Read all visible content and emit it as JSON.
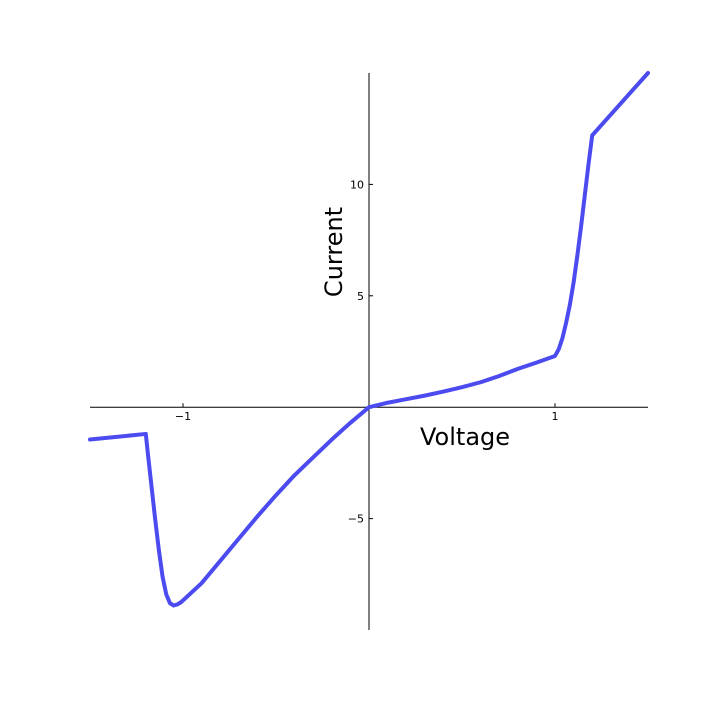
{
  "chart_data": {
    "type": "line",
    "title": "",
    "xlabel": "Voltage",
    "ylabel": "Current",
    "xlim": [
      -1.5,
      1.5
    ],
    "ylim": [
      -10,
      15
    ],
    "grid": false,
    "legend": "none",
    "line_color": "#4b4bf0",
    "x_ticks": [
      {
        "value": -1,
        "label": "−1"
      },
      {
        "value": 1,
        "label": "1"
      }
    ],
    "y_ticks": [
      {
        "value": -5,
        "label": "−5"
      },
      {
        "value": 5,
        "label": "5"
      },
      {
        "value": 10,
        "label": "10"
      }
    ],
    "series": [
      {
        "x": [
          -1.5,
          -1.2,
          -1.2,
          -1.19,
          -1.17,
          -1.15,
          -1.13,
          -1.11,
          -1.09,
          -1.07,
          -1.05,
          -1.03,
          -1.01,
          -0.9,
          -0.8,
          -0.7,
          -0.6,
          -0.5,
          -0.4,
          -0.3,
          -0.2,
          -0.1,
          0,
          0.1,
          0.2,
          0.3,
          0.4,
          0.5,
          0.6,
          0.7,
          0.8,
          0.9,
          1.0,
          1.02,
          1.04,
          1.06,
          1.08,
          1.1,
          1.12,
          1.14,
          1.16,
          1.18,
          1.2,
          1.5
        ],
        "y": [
          -1.45,
          -1.2,
          -1.2,
          -2.0,
          -3.5,
          -5.0,
          -6.4,
          -7.6,
          -8.4,
          -8.8,
          -8.9,
          -8.85,
          -8.75,
          -7.9,
          -6.9,
          -5.9,
          -4.9,
          -3.95,
          -3.05,
          -2.25,
          -1.45,
          -0.7,
          0,
          0.2,
          0.36,
          0.52,
          0.7,
          0.9,
          1.12,
          1.4,
          1.72,
          2.0,
          2.3,
          2.6,
          3.1,
          3.8,
          4.6,
          5.6,
          6.8,
          8.1,
          9.5,
          10.9,
          12.2,
          15.0
        ]
      }
    ]
  }
}
